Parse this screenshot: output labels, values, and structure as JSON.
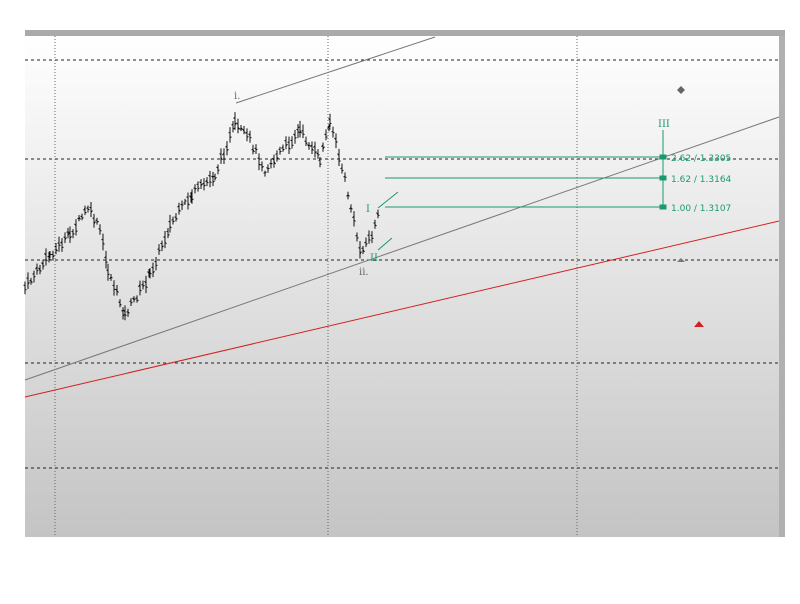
{
  "labels": {
    "wave_i": "i.",
    "wave_ii": "ii.",
    "wave_I": "I",
    "wave_II": "II",
    "wave_III": "III"
  },
  "fib_levels": [
    "2.62 / 1.3305",
    "1.62 / 1.3164",
    "1.00 / 1.3107"
  ]
}
